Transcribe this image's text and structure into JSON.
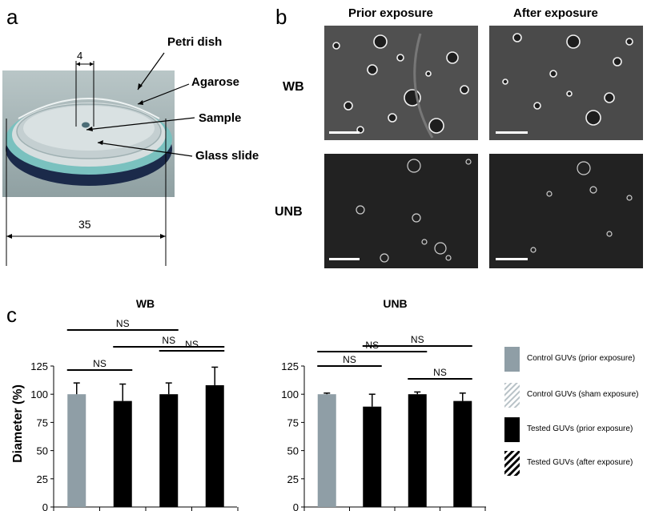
{
  "panel_a": {
    "letter": "a",
    "dim_small": "4",
    "dim_large": "35",
    "labels": [
      "Petri dish",
      "Agarose",
      "Sample",
      "Glass slide"
    ]
  },
  "panel_b": {
    "letter": "b",
    "col_headers": [
      "Prior exposure",
      "After exposure"
    ],
    "row_labels": [
      "WB",
      "UNB"
    ]
  },
  "panel_c": {
    "letter": "c",
    "y_axis_label": "Diameter (%)"
  },
  "colors": {
    "control_gray": "#8f9ea6",
    "tested_black": "#000000",
    "photo_bg": "#9aa4a6",
    "micro_dark": "#202020",
    "micro_wb_bg": "#4a4a4a"
  },
  "legend": [
    {
      "label": "Control GUVs (prior exposure)",
      "swatch": "solid-gray"
    },
    {
      "label": "Control GUVs (sham exposure)",
      "swatch": "hatched-gray"
    },
    {
      "label": "Tested GUVs (prior exposure)",
      "swatch": "solid-black"
    },
    {
      "label": "Tested GUVs (after exposure)",
      "swatch": "hatched-black"
    }
  ],
  "chart_data": [
    {
      "type": "bar",
      "title": "WB",
      "ylabel": "Diameter (%)",
      "ylim": [
        0,
        125
      ],
      "yticks": [
        0,
        25,
        50,
        75,
        100,
        125
      ],
      "bars": [
        {
          "value": 100,
          "error": 10,
          "color": "gray"
        },
        {
          "value": 94,
          "error": 15,
          "color": "black"
        },
        {
          "value": 100,
          "error": 10,
          "color": "black"
        },
        {
          "value": 108,
          "error": 16,
          "color": "black"
        }
      ],
      "significance": [
        {
          "from": 0,
          "to": 2,
          "label": "NS"
        },
        {
          "from": 1,
          "to": 3,
          "label": "NS"
        },
        {
          "from": 0,
          "to": 1,
          "label": "NS"
        },
        {
          "from": 2,
          "to": 3,
          "label": "NS"
        }
      ]
    },
    {
      "type": "bar",
      "title": "UNB",
      "ylabel": "",
      "ylim": [
        0,
        125
      ],
      "yticks": [
        0,
        25,
        50,
        75,
        100,
        125
      ],
      "bars": [
        {
          "value": 100,
          "error": 1,
          "color": "gray"
        },
        {
          "value": 89,
          "error": 11,
          "color": "black"
        },
        {
          "value": 100,
          "error": 2,
          "color": "black"
        },
        {
          "value": 94,
          "error": 7,
          "color": "black"
        }
      ],
      "significance": [
        {
          "from": 0,
          "to": 2,
          "label": "NS"
        },
        {
          "from": 1,
          "to": 3,
          "label": "NS"
        },
        {
          "from": 0,
          "to": 1,
          "label": "NS"
        },
        {
          "from": 2,
          "to": 3,
          "label": "NS"
        }
      ]
    }
  ]
}
